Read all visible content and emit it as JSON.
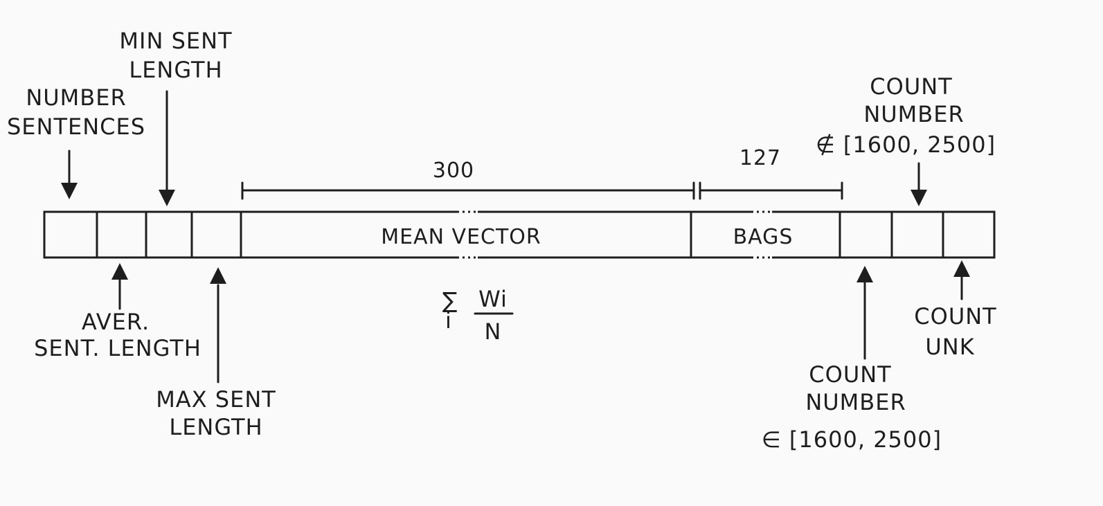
{
  "colors": {
    "ink": "#1e1e1e",
    "background": "#fafafa"
  },
  "labels": {
    "number_sentences": [
      "NUMBER",
      "SENTENCES"
    ],
    "min_sent_length": [
      "MIN SENT",
      "LENGTH"
    ],
    "aver_sent_length": [
      "AVER.",
      "SENT. LENGTH"
    ],
    "max_sent_length": [
      "MAX SENT",
      "LENGTH"
    ],
    "count_number_not_in_range": [
      "COUNT",
      "NUMBER",
      "∉ [1600, 2500]"
    ],
    "count_number_in_range": [
      "COUNT",
      "NUMBER",
      "∈ [1600, 2500]"
    ],
    "count_unk": [
      "COUNT",
      "UNK"
    ]
  },
  "segments": {
    "mean_vector": "MEAN VECTOR",
    "bags": "BAGS"
  },
  "dimensions": {
    "mean_vector_size": "300",
    "bags_size": "127"
  },
  "formula": {
    "sigma": "∑",
    "index": "i",
    "numerator": "Wi",
    "denominator": "N"
  }
}
